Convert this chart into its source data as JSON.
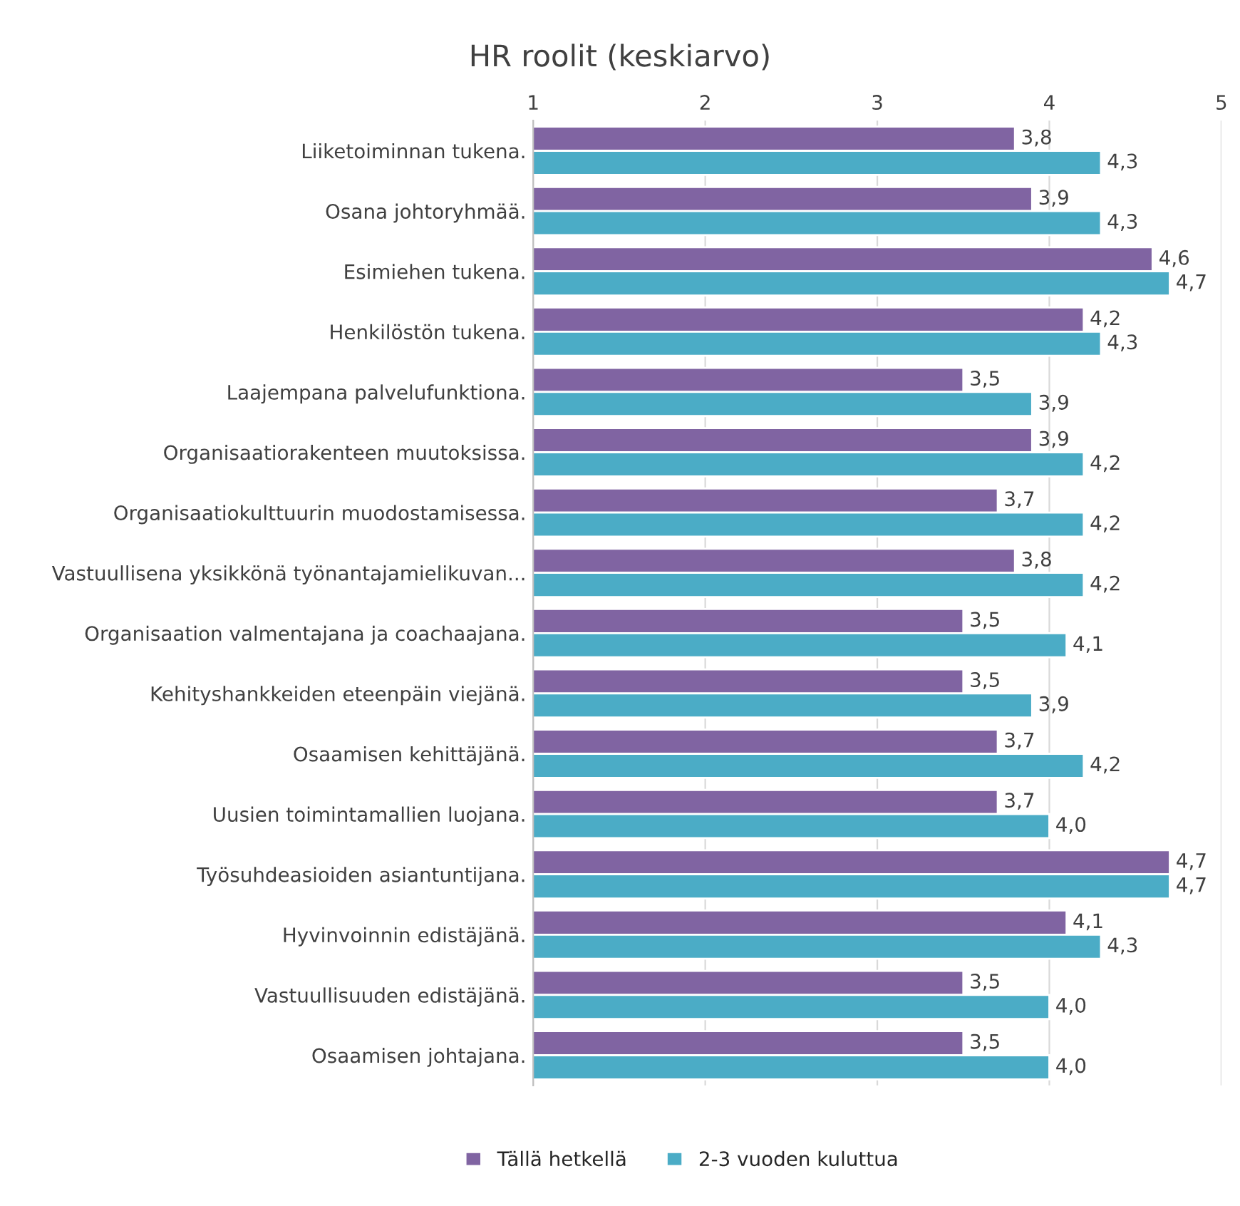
{
  "chart_data": {
    "type": "bar",
    "orientation": "horizontal",
    "title": "HR roolit (keskiarvo)",
    "categories": [
      "Liiketoiminnan tukena.",
      "Osana johtoryhmää.",
      "Esimiehen tukena.",
      "Henkilöstön tukena.",
      "Laajempana palvelufunktiona.",
      "Organisaatiorakenteen muutoksissa.",
      "Organisaatiokulttuurin muodostamisessa.",
      "Vastuullisena yksikkönä työnantajamielikuvan...",
      "Organisaation valmentajana ja coachaajana.",
      "Kehityshankkeiden eteenpäin viejänä.",
      "Osaamisen kehittäjänä.",
      "Uusien toimintamallien luojana.",
      "Työsuhdeasioiden asiantuntijana.",
      "Hyvinvoinnin edistäjänä.",
      "Vastuullisuuden edistäjänä.",
      "Osaamisen johtajana."
    ],
    "series": [
      {
        "name": "Tällä hetkellä",
        "color": "#8064a2",
        "values": [
          3.8,
          3.9,
          4.6,
          4.2,
          3.5,
          3.9,
          3.7,
          3.8,
          3.5,
          3.5,
          3.7,
          3.7,
          4.7,
          4.1,
          3.5,
          3.5
        ],
        "value_labels": [
          "3,8",
          "3,9",
          "4,6",
          "4,2",
          "3,5",
          "3,9",
          "3,7",
          "3,8",
          "3,5",
          "3,5",
          "3,7",
          "3,7",
          "4,7",
          "4,1",
          "3,5",
          "3,5"
        ]
      },
      {
        "name": "2-3 vuoden kuluttua",
        "color": "#4bacc6",
        "values": [
          4.3,
          4.3,
          4.7,
          4.3,
          3.9,
          4.2,
          4.2,
          4.2,
          4.1,
          3.9,
          4.2,
          4.0,
          4.7,
          4.3,
          4.0,
          4.0
        ],
        "value_labels": [
          "4,3",
          "4,3",
          "4,7",
          "4,3",
          "3,9",
          "4,2",
          "4,2",
          "4,2",
          "4,1",
          "3,9",
          "4,2",
          "4,0",
          "4,7",
          "4,3",
          "4,0",
          "4,0"
        ]
      }
    ],
    "xlim": [
      1,
      5
    ],
    "xticks": [
      1,
      2,
      3,
      4,
      5
    ],
    "grid": "x",
    "legend": "bottom"
  }
}
